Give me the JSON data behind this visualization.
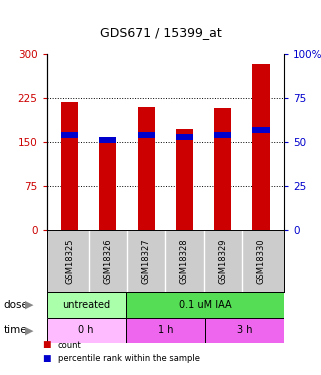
{
  "title": "GDS671 / 15399_at",
  "samples": [
    "GSM18325",
    "GSM18326",
    "GSM18327",
    "GSM18328",
    "GSM18329",
    "GSM18330"
  ],
  "count_values": [
    218,
    155,
    210,
    172,
    208,
    283
  ],
  "percentile_values": [
    54,
    51,
    54,
    53,
    54,
    57
  ],
  "left_ylim": [
    0,
    300
  ],
  "right_ylim": [
    0,
    100
  ],
  "left_yticks": [
    0,
    75,
    150,
    225,
    300
  ],
  "right_yticks": [
    0,
    25,
    50,
    75,
    100
  ],
  "left_yticklabels": [
    "0",
    "75",
    "150",
    "225",
    "300"
  ],
  "right_yticklabels": [
    "0",
    "25",
    "50",
    "75",
    "100%"
  ],
  "left_tick_color": "#cc0000",
  "right_tick_color": "#0000cc",
  "bar_color": "#cc0000",
  "percentile_color": "#0000cc",
  "bar_width": 0.45,
  "dose_labels": [
    {
      "text": "untreated",
      "start": 0,
      "end": 2,
      "color": "#aaffaa"
    },
    {
      "text": "0.1 uM IAA",
      "start": 2,
      "end": 6,
      "color": "#55dd55"
    }
  ],
  "time_labels": [
    {
      "text": "0 h",
      "start": 0,
      "end": 2,
      "color": "#ffbbff"
    },
    {
      "text": "1 h",
      "start": 2,
      "end": 4,
      "color": "#ee66ee"
    },
    {
      "text": "3 h",
      "start": 4,
      "end": 6,
      "color": "#ee66ee"
    }
  ],
  "dose_row_label": "dose",
  "time_row_label": "time",
  "legend_items": [
    {
      "label": "count",
      "color": "#cc0000"
    },
    {
      "label": "percentile rank within the sample",
      "color": "#0000cc"
    }
  ],
  "bg_color": "white",
  "plot_bg_color": "white",
  "sample_area_color": "#cccccc"
}
